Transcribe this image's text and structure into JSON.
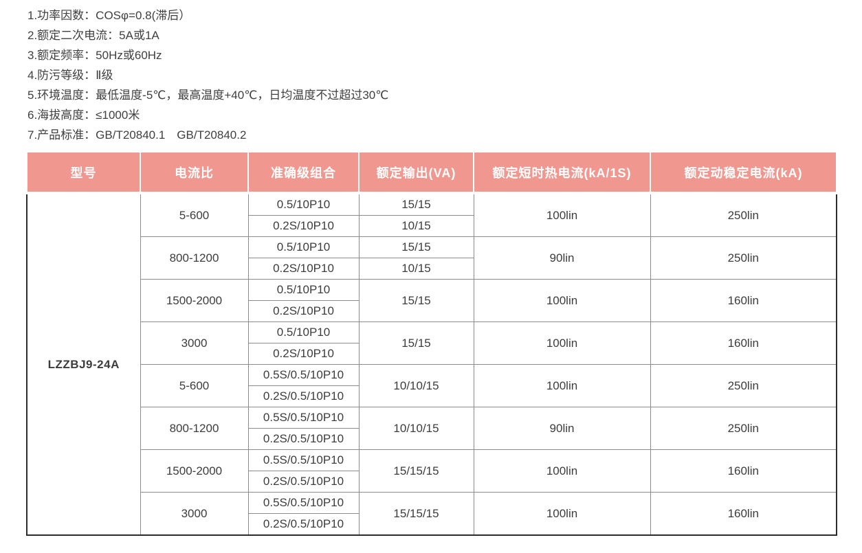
{
  "specs": {
    "items": [
      "1.功率因数：COSφ=0.8(滞后）",
      "2.额定二次电流：5A或1A",
      "3.额定频率：50Hz或60Hz",
      "4.防污等级：Ⅱ级",
      "5.环境温度：最低温度-5℃，最高温度+40℃，日均温度不过超过30℃",
      "6.海拔高度：≤1000米",
      "7.产品标准：GB/T20840.1　GB/T20840.2"
    ]
  },
  "table": {
    "accent_color": "#F0978F",
    "border_color": "#8c8c8c",
    "outer_border_color": "#2b2b2b",
    "headers": [
      "型号",
      "电流比",
      "准确级组合",
      "额定输出(VA)",
      "额定短时热电流(kA/1S)",
      "额定动稳定电流(kA)"
    ],
    "model": "LZZBJ9-24A",
    "groups": [
      {
        "ratio": "5-600",
        "accuracy": [
          "0.5/10P10",
          "0.2S/10P10"
        ],
        "output": [
          "15/15",
          "10/15"
        ],
        "thermal": "100lin",
        "dynamic": "250lin"
      },
      {
        "ratio": "800-1200",
        "accuracy": [
          "0.5/10P10",
          "0.2S/10P10"
        ],
        "output": [
          "15/15",
          "10/15"
        ],
        "thermal": "90lin",
        "dynamic": "250lin"
      },
      {
        "ratio": "1500-2000",
        "accuracy": [
          "0.5/10P10",
          "0.2S/10P10"
        ],
        "output": [
          "15/15"
        ],
        "thermal": "100lin",
        "dynamic": "160lin"
      },
      {
        "ratio": "3000",
        "accuracy": [
          "0.5/10P10",
          "0.2S/10P10"
        ],
        "output": [
          "15/15"
        ],
        "thermal": "100lin",
        "dynamic": "160lin"
      },
      {
        "ratio": "5-600",
        "accuracy": [
          "0.5S/0.5/10P10",
          "0.2S/0.5/10P10"
        ],
        "output": [
          "10/10/15"
        ],
        "thermal": "100lin",
        "dynamic": "250lin"
      },
      {
        "ratio": "800-1200",
        "accuracy": [
          "0.5S/0.5/10P10",
          "0.2S/0.5/10P10"
        ],
        "output": [
          "10/10/15"
        ],
        "thermal": "90lin",
        "dynamic": "250lin"
      },
      {
        "ratio": "1500-2000",
        "accuracy": [
          "0.5S/0.5/10P10",
          "0.2S/0.5/10P10"
        ],
        "output": [
          "15/15/15"
        ],
        "thermal": "100lin",
        "dynamic": "160lin"
      },
      {
        "ratio": "3000",
        "accuracy": [
          "0.5S/0.5/10P10",
          "0.2S/0.5/10P10"
        ],
        "output": [
          "15/15/15"
        ],
        "thermal": "100lin",
        "dynamic": "160lin"
      }
    ]
  }
}
